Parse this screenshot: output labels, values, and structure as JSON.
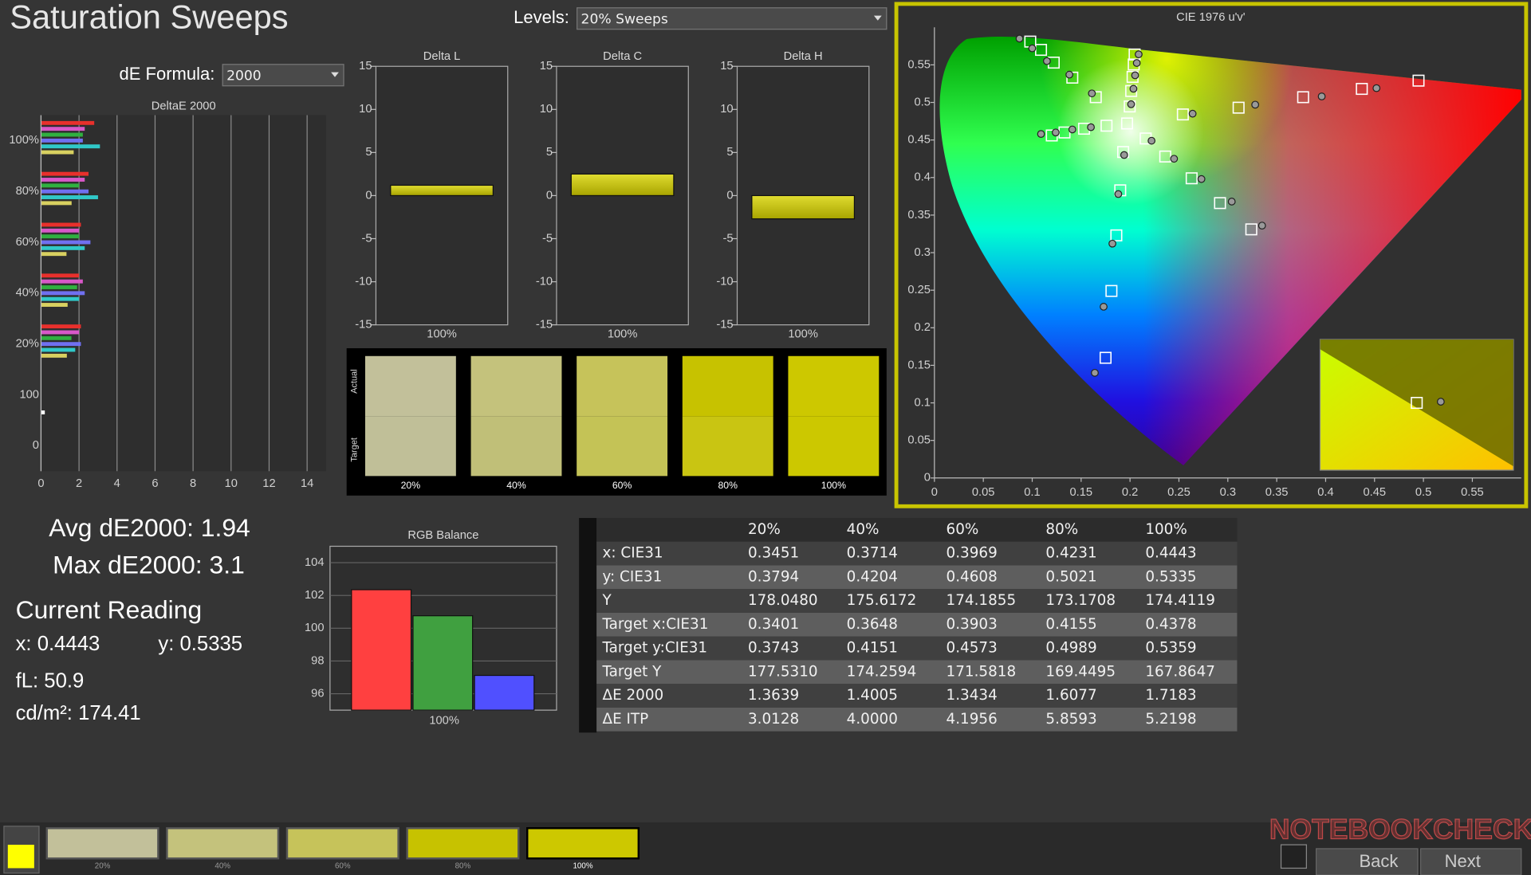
{
  "title": "Saturation Sweeps",
  "levels_label": "Levels:",
  "levels_value": "20% Sweeps",
  "formula_label": "dE Formula:",
  "formula_value": "2000",
  "deltae": {
    "type": "bar",
    "title": "DeltaE 2000",
    "categories": [
      "100%",
      "80%",
      "60%",
      "40%",
      "20%",
      "100",
      "0"
    ],
    "series": [
      {
        "color": "#e8302c",
        "values": [
          2.8,
          2.5,
          2.1,
          2.0,
          2.1,
          null,
          null
        ]
      },
      {
        "color": "#d858c8",
        "values": [
          2.3,
          2.3,
          2.0,
          2.2,
          2.0,
          null,
          null
        ]
      },
      {
        "color": "#30b040",
        "values": [
          2.2,
          2.0,
          2.0,
          1.9,
          1.6,
          null,
          null
        ]
      },
      {
        "color": "#7070f0",
        "values": [
          2.2,
          2.5,
          2.6,
          2.3,
          2.1,
          null,
          null
        ]
      },
      {
        "color": "#30c8c8",
        "values": [
          3.1,
          3.0,
          2.3,
          2.0,
          1.8,
          null,
          null
        ]
      },
      {
        "color": "#d8d060",
        "values": [
          1.72,
          1.61,
          1.34,
          1.4,
          1.36,
          null,
          null
        ]
      },
      {
        "color": "#ffffff",
        "values": [
          null,
          null,
          null,
          null,
          null,
          0.2,
          null
        ]
      }
    ],
    "xlim": [
      0,
      15
    ],
    "xticks": [
      0,
      2,
      4,
      6,
      8,
      10,
      12,
      14
    ],
    "grid": true
  },
  "deltas": [
    {
      "type": "bar",
      "title": "Delta L",
      "categories": [
        "100%"
      ],
      "values": [
        1.2
      ],
      "color": "#c8c400",
      "ylim": [
        -15,
        15
      ],
      "yticks": [
        -15,
        -10,
        -5,
        0,
        5,
        10,
        15
      ]
    },
    {
      "type": "bar",
      "title": "Delta C",
      "categories": [
        "100%"
      ],
      "values": [
        2.5
      ],
      "color": "#c8c400",
      "ylim": [
        -15,
        15
      ],
      "yticks": [
        -15,
        -10,
        -5,
        0,
        5,
        10,
        15
      ]
    },
    {
      "type": "bar",
      "title": "Delta H",
      "categories": [
        "100%"
      ],
      "values": [
        -2.7
      ],
      "color": "#c8c400",
      "ylim": [
        -15,
        15
      ],
      "yticks": [
        -15,
        -10,
        -5,
        0,
        5,
        10,
        15
      ]
    }
  ],
  "swatches": {
    "row_labels": [
      "Actual",
      "Target"
    ],
    "levels": [
      "20%",
      "40%",
      "60%",
      "80%",
      "100%"
    ],
    "actual_colors": [
      "#c2c09a",
      "#c4c27c",
      "#c6c35a",
      "#c7c200",
      "#cdc800"
    ],
    "target_colors": [
      "#c0bf98",
      "#c0bf78",
      "#c4c356",
      "#c9c512",
      "#ccc800"
    ]
  },
  "stats": {
    "avg": "Avg dE2000: 1.94",
    "max": "Max dE2000: 3.1",
    "heading": "Current Reading",
    "x": "x: 0.4443",
    "y": "y: 0.5335",
    "fl": "fL: 50.9",
    "cdm2": "cd/m²: 174.41"
  },
  "rgb": {
    "type": "bar",
    "title": "RGB Balance",
    "categories": [
      "100%"
    ],
    "series": [
      {
        "color": "#ff4040",
        "values": [
          102.35
        ]
      },
      {
        "color": "#40a040",
        "values": [
          100.76
        ]
      },
      {
        "color": "#5050ff",
        "values": [
          97.12
        ]
      }
    ],
    "ylim": [
      95,
      105
    ],
    "yticks": [
      96,
      98,
      100,
      102,
      104
    ],
    "grid": true
  },
  "table": {
    "header": [
      "20%",
      "40%",
      "60%",
      "80%",
      "100%"
    ],
    "rows": [
      [
        "x: CIE31",
        "0.3451",
        "0.3714",
        "0.3969",
        "0.4231",
        "0.4443"
      ],
      [
        "y: CIE31",
        "0.3794",
        "0.4204",
        "0.4608",
        "0.5021",
        "0.5335"
      ],
      [
        "Y",
        "178.0480",
        "175.6172",
        "174.1855",
        "173.1708",
        "174.4119"
      ],
      [
        "Target x:CIE31",
        "0.3401",
        "0.3648",
        "0.3903",
        "0.4155",
        "0.4378"
      ],
      [
        "Target y:CIE31",
        "0.3743",
        "0.4151",
        "0.4573",
        "0.4989",
        "0.5359"
      ],
      [
        "Target Y",
        "177.5310",
        "174.2594",
        "171.5818",
        "169.4495",
        "167.8647"
      ],
      [
        "ΔE 2000",
        "1.3639",
        "1.4005",
        "1.3434",
        "1.6077",
        "1.7183"
      ],
      [
        "ΔE ITP",
        "3.0128",
        "4.0000",
        "4.1956",
        "5.8593",
        "5.2198"
      ]
    ]
  },
  "cie": {
    "type": "scatter",
    "title": "CIE 1976 u'v'",
    "xlim": [
      0,
      0.6
    ],
    "ylim": [
      0,
      0.6
    ],
    "xticks": [
      0,
      0.05,
      0.1,
      0.15,
      0.2,
      0.25,
      0.3,
      0.35,
      0.4,
      0.45,
      0.5,
      0.55
    ],
    "yticks": [
      0,
      0.05,
      0.1,
      0.15,
      0.2,
      0.25,
      0.3,
      0.35,
      0.4,
      0.45,
      0.5,
      0.55
    ],
    "targets": {
      "x": [
        0.254,
        0.311,
        0.377,
        0.437,
        0.495,
        0.165,
        0.141,
        0.122,
        0.109,
        0.098,
        0.193,
        0.19,
        0.186,
        0.181,
        0.175,
        0.176,
        0.153,
        0.133,
        0.12,
        0.216,
        0.236,
        0.263,
        0.292,
        0.324,
        0.1997,
        0.2012,
        0.2026,
        0.2038,
        0.2047,
        0.197
      ],
      "y": [
        0.484,
        0.493,
        0.507,
        0.518,
        0.529,
        0.507,
        0.533,
        0.553,
        0.57,
        0.581,
        0.434,
        0.383,
        0.323,
        0.249,
        0.16,
        0.469,
        0.465,
        0.46,
        0.456,
        0.452,
        0.428,
        0.399,
        0.366,
        0.331,
        0.4946,
        0.5152,
        0.534,
        0.5505,
        0.5638,
        0.472
      ]
    },
    "measured": {
      "x": [
        0.264,
        0.328,
        0.396,
        0.452,
        0.161,
        0.138,
        0.115,
        0.1,
        0.087,
        0.194,
        0.188,
        0.182,
        0.173,
        0.164,
        0.16,
        0.141,
        0.124,
        0.109,
        0.222,
        0.245,
        0.273,
        0.304,
        0.335,
        0.2011,
        0.2035,
        0.2052,
        0.2069,
        0.2088
      ],
      "y": [
        0.485,
        0.497,
        0.508,
        0.519,
        0.512,
        0.537,
        0.555,
        0.572,
        0.585,
        0.43,
        0.378,
        0.312,
        0.228,
        0.14,
        0.467,
        0.464,
        0.46,
        0.458,
        0.449,
        0.425,
        0.398,
        0.368,
        0.336,
        0.4976,
        0.5182,
        0.5361,
        0.5525,
        0.564
      ]
    }
  },
  "buttons": {
    "back": "Back",
    "next": "Next"
  },
  "watermark": "NOTEBOOKCHECK"
}
